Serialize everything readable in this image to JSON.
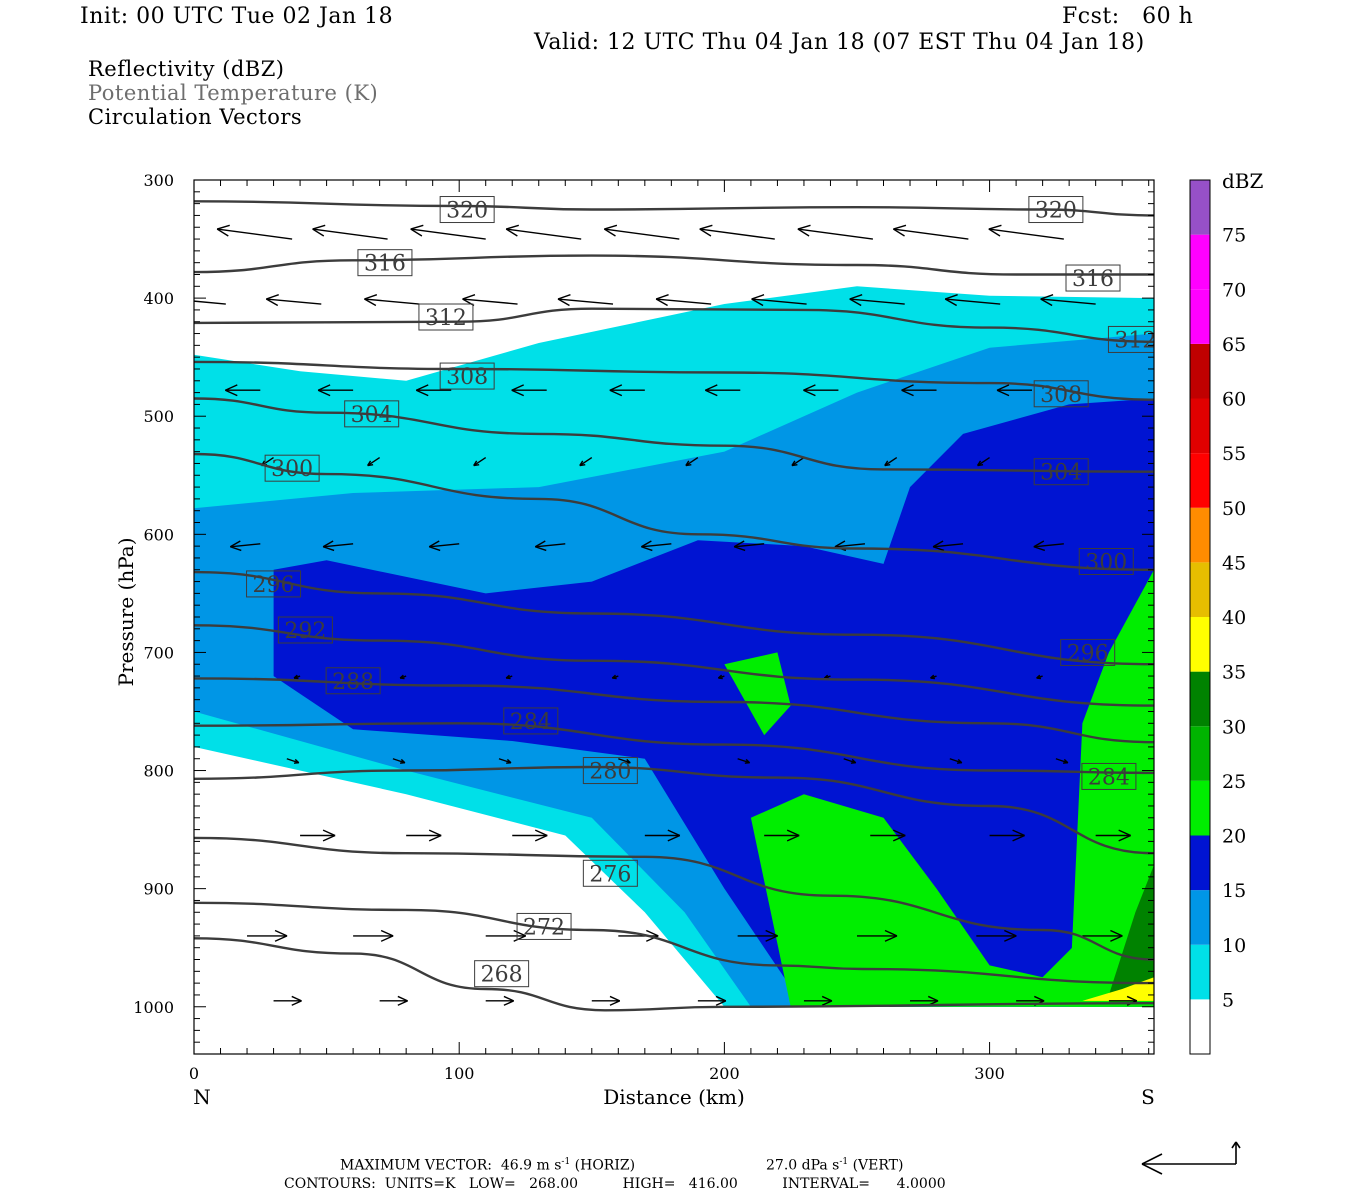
{
  "header": {
    "init": "Init: 00 UTC Tue 02 Jan 18",
    "fcst": "Fcst:   60 h",
    "valid": "Valid: 12 UTC Thu 04 Jan 18 (07 EST Thu 04 Jan 18)"
  },
  "legend": {
    "line1": "Reflectivity (dBZ)",
    "line2": "Potential Temperature (K)",
    "line3": "Circulation Vectors"
  },
  "footer": {
    "max_vector": "MAXIMUM VECTOR:  46.9 m s",
    "max_vector_exp": "-1",
    "max_vector_h": " (HORIZ)",
    "vert": "27.0 dPa s",
    "vert_exp": "-1",
    "vert_tail": " (VERT)",
    "contours": "CONTOURS:  UNITS=K   LOW=   268.00          HIGH=   416.00          INTERVAL=      4.0000"
  },
  "colorbar": {
    "unit": "dBZ",
    "levels": [
      5,
      10,
      15,
      20,
      25,
      30,
      35,
      40,
      45,
      50,
      55,
      60,
      65,
      70,
      75
    ],
    "colors": [
      "#00e0e8",
      "#0096e6",
      "#0014d2",
      "#00ee00",
      "#00b400",
      "#008200",
      "#ffff00",
      "#e6be00",
      "#ff8c00",
      "#ff0000",
      "#e10000",
      "#c00000",
      "#ff00ff",
      "#ff00ff",
      "#9650c8"
    ]
  },
  "chart_data": {
    "type": "cross-section",
    "xlabel": "Distance (km)",
    "ylabel": "Pressure (hPa)",
    "xlim": [
      0,
      362
    ],
    "ylim": [
      1040,
      300
    ],
    "x_ticks": [
      0,
      100,
      200,
      300
    ],
    "y_ticks": [
      300,
      400,
      500,
      600,
      700,
      800,
      900,
      1000
    ],
    "x_end_labels": {
      "left": "N",
      "right": "S"
    },
    "theta_contours": [
      {
        "value": 320,
        "points": [
          [
            0,
            318
          ],
          [
            100,
            322
          ],
          [
            150,
            325
          ],
          [
            250,
            323
          ],
          [
            320,
            325
          ],
          [
            362,
            330
          ]
        ],
        "labels": [
          [
            103,
            325
          ],
          [
            325,
            325
          ]
        ]
      },
      {
        "value": 316,
        "points": [
          [
            0,
            378
          ],
          [
            60,
            368
          ],
          [
            150,
            364
          ],
          [
            250,
            372
          ],
          [
            310,
            380
          ],
          [
            362,
            380
          ]
        ],
        "labels": [
          [
            72,
            370
          ],
          [
            339,
            383
          ]
        ]
      },
      {
        "value": 312,
        "points": [
          [
            0,
            421
          ],
          [
            100,
            420
          ],
          [
            150,
            409
          ],
          [
            230,
            410
          ],
          [
            300,
            425
          ],
          [
            362,
            437
          ]
        ],
        "labels": [
          [
            95,
            416
          ],
          [
            355,
            435
          ]
        ]
      },
      {
        "value": 308,
        "points": [
          [
            0,
            454
          ],
          [
            100,
            460
          ],
          [
            200,
            463
          ],
          [
            300,
            472
          ],
          [
            362,
            486
          ]
        ],
        "labels": [
          [
            103,
            466
          ],
          [
            327,
            481
          ]
        ]
      },
      {
        "value": 304,
        "points": [
          [
            0,
            485
          ],
          [
            50,
            497
          ],
          [
            130,
            515
          ],
          [
            200,
            525
          ],
          [
            260,
            545
          ],
          [
            362,
            547
          ]
        ],
        "labels": [
          [
            67,
            498
          ],
          [
            327,
            547
          ]
        ]
      },
      {
        "value": 300,
        "points": [
          [
            0,
            532
          ],
          [
            50,
            549
          ],
          [
            130,
            570
          ],
          [
            190,
            600
          ],
          [
            250,
            612
          ],
          [
            362,
            630
          ]
        ],
        "labels": [
          [
            37,
            544
          ],
          [
            344,
            623
          ]
        ]
      },
      {
        "value": 296,
        "points": [
          [
            0,
            632
          ],
          [
            70,
            650
          ],
          [
            150,
            667
          ],
          [
            250,
            685
          ],
          [
            362,
            710
          ]
        ],
        "labels": [
          [
            30,
            642
          ],
          [
            337,
            700
          ]
        ]
      },
      {
        "value": 292,
        "points": [
          [
            0,
            677
          ],
          [
            70,
            690
          ],
          [
            150,
            707
          ],
          [
            250,
            723
          ],
          [
            362,
            745
          ]
        ],
        "labels": [
          [
            42,
            681
          ],
          null
        ]
      },
      {
        "value": 288,
        "points": [
          [
            0,
            722
          ],
          [
            100,
            728
          ],
          [
            200,
            742
          ],
          [
            300,
            760
          ],
          [
            362,
            776
          ]
        ],
        "labels": [
          [
            60,
            724
          ],
          null
        ]
      },
      {
        "value": 284,
        "points": [
          [
            0,
            762
          ],
          [
            100,
            760
          ],
          [
            200,
            778
          ],
          [
            300,
            800
          ],
          [
            362,
            802
          ]
        ],
        "labels": [
          [
            127,
            758
          ],
          [
            345,
            805
          ]
        ]
      },
      {
        "value": 280,
        "points": [
          [
            0,
            807
          ],
          [
            80,
            800
          ],
          [
            150,
            797
          ],
          [
            220,
            806
          ],
          [
            300,
            830
          ],
          [
            362,
            870
          ]
        ],
        "labels": [
          [
            157,
            800
          ],
          null
        ]
      },
      {
        "value": 276,
        "points": [
          [
            0,
            857
          ],
          [
            80,
            870
          ],
          [
            170,
            873
          ],
          [
            240,
            906
          ],
          [
            320,
            935
          ],
          [
            362,
            960
          ]
        ],
        "labels": [
          [
            157,
            887
          ],
          null
        ]
      },
      {
        "value": 272,
        "points": [
          [
            0,
            912
          ],
          [
            80,
            918
          ],
          [
            150,
            935
          ],
          [
            220,
            965
          ],
          [
            252,
            968
          ],
          [
            362,
            980
          ]
        ],
        "labels": [
          [
            132,
            932
          ],
          null
        ]
      },
      {
        "value": 268,
        "points": [
          [
            0,
            942
          ],
          [
            60,
            955
          ],
          [
            110,
            985
          ],
          [
            155,
            1003
          ],
          [
            200,
            1000
          ],
          [
            362,
            997
          ]
        ],
        "labels": [
          [
            116,
            972
          ],
          null
        ]
      }
    ],
    "reflectivity_regions": [
      {
        "dbz": 5,
        "polygon": [
          [
            0,
            448
          ],
          [
            40,
            462
          ],
          [
            80,
            470
          ],
          [
            130,
            438
          ],
          [
            200,
            405
          ],
          [
            250,
            390
          ],
          [
            300,
            398
          ],
          [
            362,
            400
          ],
          [
            362,
            1000
          ],
          [
            200,
            1000
          ],
          [
            170,
            920
          ],
          [
            140,
            855
          ],
          [
            80,
            820
          ],
          [
            0,
            780
          ]
        ]
      },
      {
        "dbz": 10,
        "polygon": [
          [
            0,
            578
          ],
          [
            60,
            565
          ],
          [
            130,
            560
          ],
          [
            200,
            530
          ],
          [
            250,
            480
          ],
          [
            300,
            442
          ],
          [
            362,
            430
          ],
          [
            362,
            1000
          ],
          [
            210,
            1000
          ],
          [
            185,
            920
          ],
          [
            150,
            840
          ],
          [
            80,
            800
          ],
          [
            0,
            750
          ]
        ]
      },
      {
        "dbz": 15,
        "polygon": [
          [
            30,
            630
          ],
          [
            50,
            622
          ],
          [
            110,
            650
          ],
          [
            150,
            640
          ],
          [
            190,
            605
          ],
          [
            230,
            610
          ],
          [
            260,
            625
          ],
          [
            270,
            560
          ],
          [
            290,
            515
          ],
          [
            330,
            490
          ],
          [
            362,
            485
          ],
          [
            362,
            1000
          ],
          [
            230,
            1000
          ],
          [
            200,
            900
          ],
          [
            170,
            790
          ],
          [
            120,
            775
          ],
          [
            60,
            765
          ],
          [
            30,
            720
          ]
        ]
      },
      {
        "dbz": 20,
        "polygon": [
          [
            200,
            710
          ],
          [
            220,
            700
          ],
          [
            225,
            745
          ],
          [
            215,
            770
          ]
        ]
      },
      {
        "dbz": 20,
        "polygon": [
          [
            210,
            840
          ],
          [
            230,
            820
          ],
          [
            260,
            840
          ],
          [
            280,
            900
          ],
          [
            300,
            965
          ],
          [
            320,
            975
          ],
          [
            340,
            930
          ],
          [
            350,
            880
          ],
          [
            362,
            870
          ],
          [
            362,
            1000
          ],
          [
            225,
            1000
          ]
        ]
      },
      {
        "dbz": 20,
        "polygon": [
          [
            335,
            760
          ],
          [
            345,
            700
          ],
          [
            362,
            630
          ],
          [
            362,
            1000
          ],
          [
            330,
            1000
          ]
        ]
      },
      {
        "dbz": 30,
        "polygon": [
          [
            355,
            920
          ],
          [
            362,
            880
          ],
          [
            362,
            985
          ],
          [
            345,
            990
          ]
        ]
      },
      {
        "dbz": 35,
        "polygon": [
          [
            335,
            995
          ],
          [
            350,
            985
          ],
          [
            362,
            975
          ],
          [
            362,
            995
          ]
        ]
      }
    ]
  }
}
